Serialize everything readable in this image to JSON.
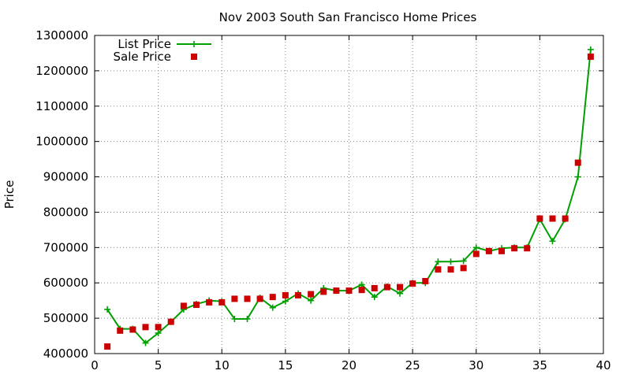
{
  "chart_data": {
    "type": "line",
    "title": "Nov 2003 South San Francisco Home Prices",
    "xlabel": "",
    "ylabel": "Price",
    "xlim": [
      0,
      40
    ],
    "ylim": [
      400000,
      1300000
    ],
    "x_ticks": [
      "0",
      "5",
      "10",
      "15",
      "20",
      "25",
      "30",
      "35",
      "40"
    ],
    "y_ticks": [
      "400000",
      "500000",
      "600000",
      "700000",
      "800000",
      "900000",
      "1000000",
      "1100000",
      "1200000",
      "1300000"
    ],
    "grid": true,
    "legend_position": "top-left",
    "colors": {
      "list": "#00a000",
      "sale": "#cc0000"
    },
    "series": [
      {
        "name": "List Price",
        "style": "line-with-plus-markers",
        "x": [
          1,
          2,
          3,
          4,
          5,
          6,
          7,
          8,
          9,
          10,
          11,
          12,
          13,
          14,
          15,
          16,
          17,
          18,
          19,
          20,
          21,
          22,
          23,
          24,
          25,
          26,
          27,
          28,
          29,
          30,
          31,
          32,
          33,
          34,
          35,
          36,
          37,
          38,
          39
        ],
        "values": [
          525000,
          470000,
          470000,
          430000,
          458000,
          490000,
          525000,
          540000,
          550000,
          548000,
          498000,
          498000,
          558000,
          530000,
          548000,
          570000,
          550000,
          585000,
          578000,
          578000,
          595000,
          560000,
          590000,
          570000,
          600000,
          600000,
          660000,
          660000,
          662000,
          700000,
          690000,
          698000,
          700000,
          700000,
          780000,
          718000,
          780000,
          900000,
          1260000
        ]
      },
      {
        "name": "Sale Price",
        "style": "square-markers",
        "x": [
          1,
          2,
          3,
          4,
          5,
          6,
          7,
          8,
          9,
          10,
          11,
          12,
          13,
          14,
          15,
          16,
          17,
          18,
          19,
          20,
          21,
          22,
          23,
          24,
          25,
          26,
          27,
          28,
          29,
          30,
          31,
          32,
          33,
          34,
          35,
          36,
          37,
          38,
          39
        ],
        "values": [
          420000,
          465000,
          468000,
          475000,
          475000,
          490000,
          535000,
          538000,
          545000,
          545000,
          555000,
          555000,
          555000,
          560000,
          565000,
          565000,
          568000,
          575000,
          578000,
          578000,
          580000,
          585000,
          588000,
          588000,
          598000,
          605000,
          638000,
          638000,
          642000,
          682000,
          690000,
          690000,
          698000,
          698000,
          782000,
          782000,
          782000,
          940000,
          1240000
        ]
      }
    ]
  }
}
